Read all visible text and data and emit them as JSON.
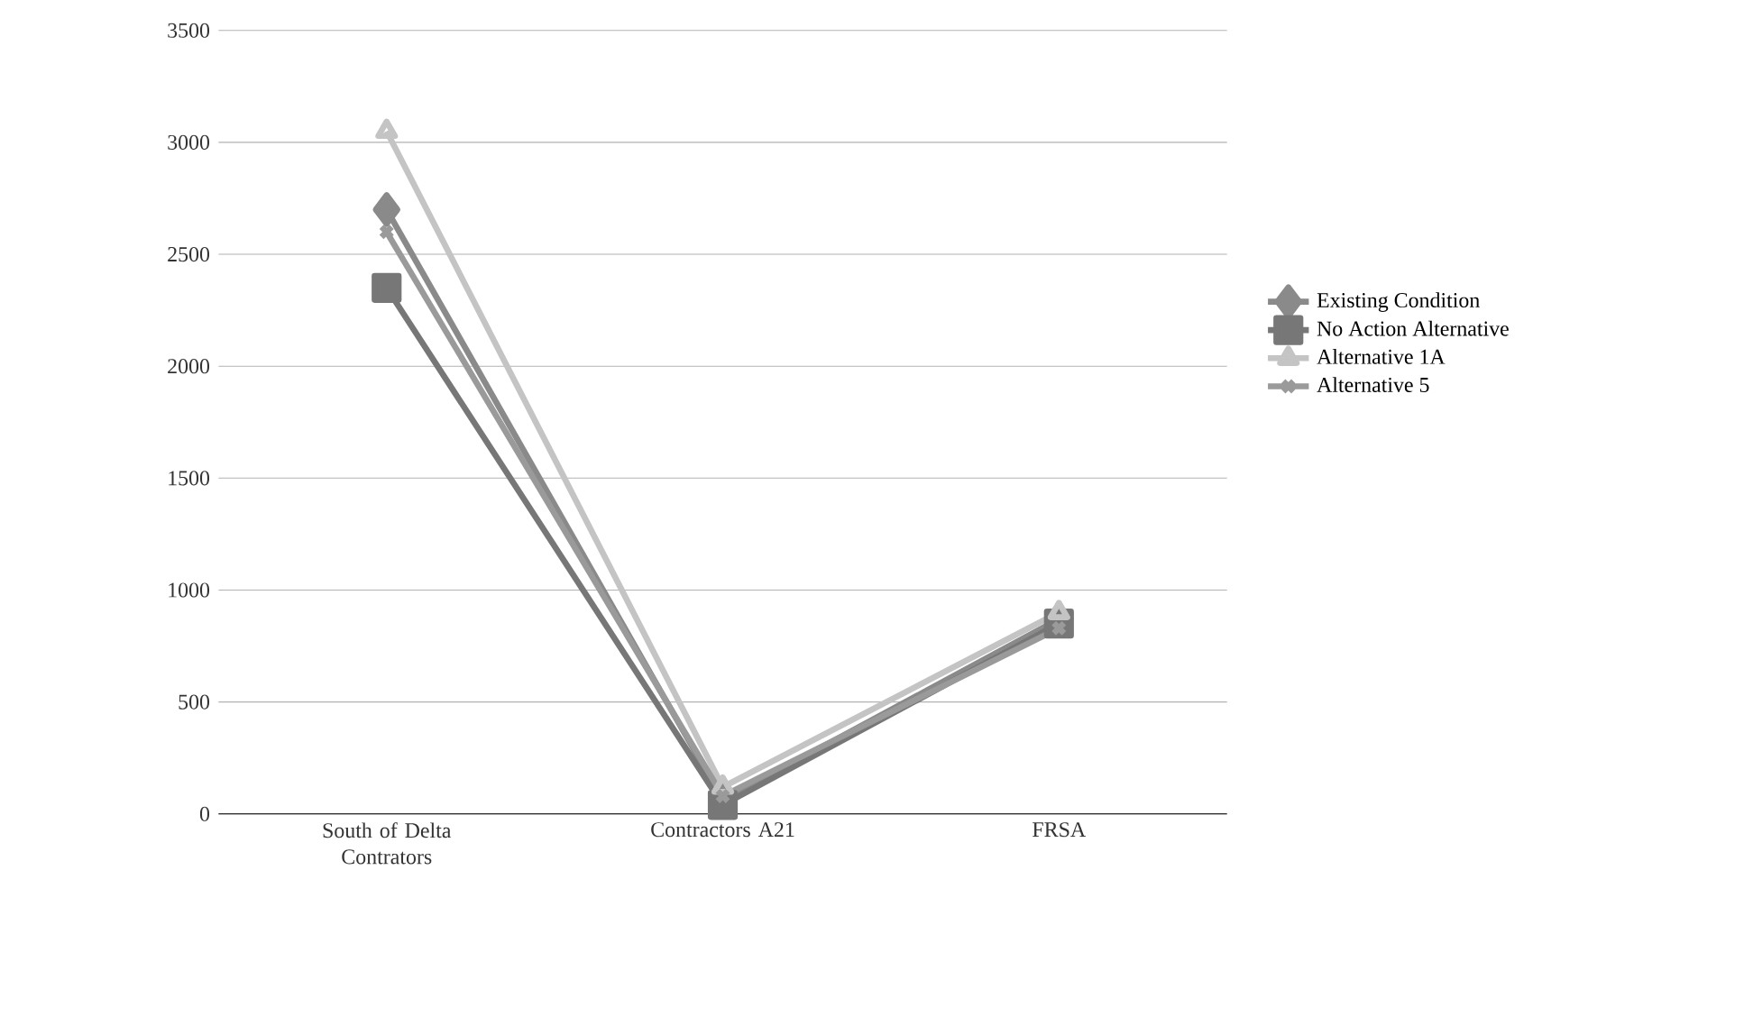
{
  "chart_data": {
    "type": "line",
    "categories": [
      "South of Delta Contrators",
      "Contractors A21",
      "FRSA"
    ],
    "series": [
      {
        "name": "Existing Condition",
        "color": "#8a8a8a",
        "marker": "diamond",
        "values": [
          2700,
          60,
          870
        ]
      },
      {
        "name": "No Action Alternative",
        "color": "#777777",
        "marker": "square",
        "values": [
          2350,
          40,
          850
        ]
      },
      {
        "name": "Alternative 1A",
        "color": "#c4c4c4",
        "marker": "triangle",
        "values": [
          3050,
          120,
          900
        ]
      },
      {
        "name": "Alternative 5",
        "color": "#9a9a9a",
        "marker": "cross",
        "values": [
          2600,
          80,
          830
        ]
      }
    ],
    "ylim": [
      0,
      3500
    ],
    "yticks": [
      0,
      500,
      1000,
      1500,
      2000,
      2500,
      3000,
      3500
    ],
    "grid": "y",
    "legend": "right"
  }
}
